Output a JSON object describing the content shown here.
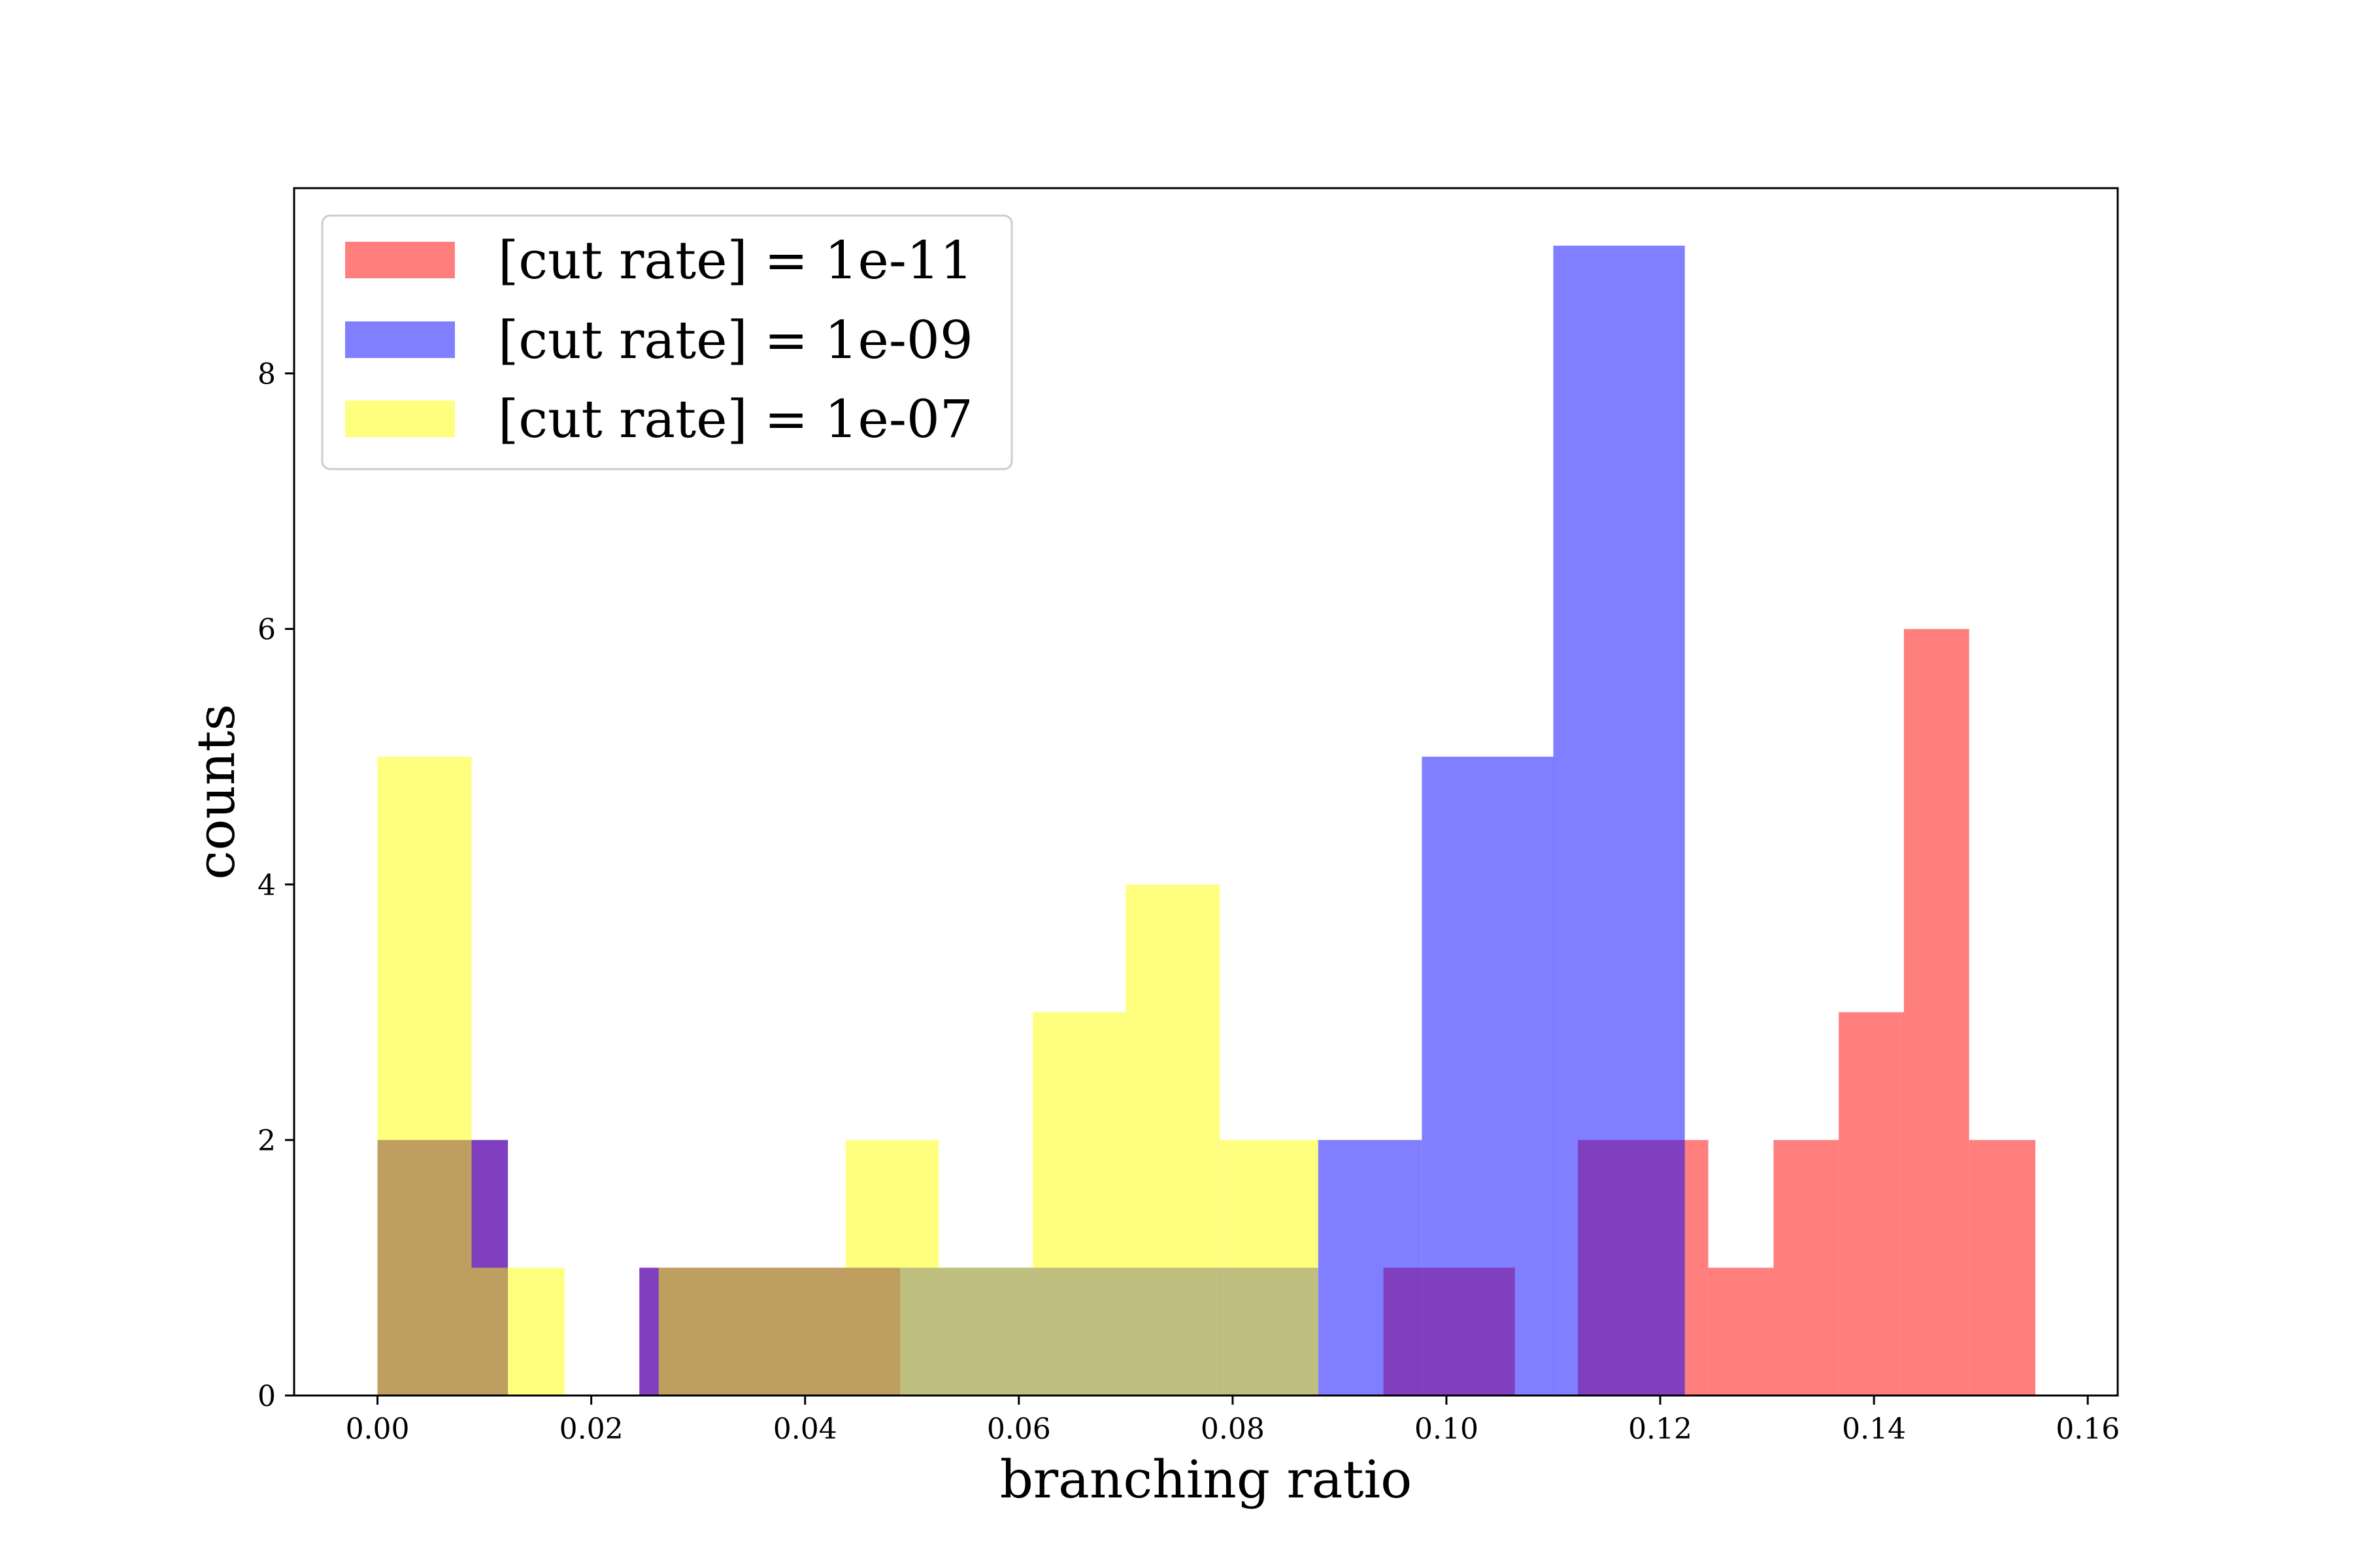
{
  "chart_data": {
    "type": "histogram",
    "xlabel": "branching ratio",
    "ylabel": "counts",
    "xlim": [
      -0.0078,
      0.1628
    ],
    "ylim": [
      0,
      9.45
    ],
    "xticks": [
      0.0,
      0.02,
      0.04,
      0.06,
      0.08,
      0.1,
      0.12,
      0.14,
      0.16
    ],
    "xtick_labels": [
      "0.00",
      "0.02",
      "0.04",
      "0.06",
      "0.08",
      "0.10",
      "0.12",
      "0.14",
      "0.16"
    ],
    "yticks": [
      0,
      2,
      4,
      6,
      8
    ],
    "ytick_labels": [
      "0",
      "2",
      "4",
      "6",
      "8"
    ],
    "legend_position": "upper-left",
    "series": [
      {
        "name": "[cut rate] = 1e-11",
        "color": "#ff0000",
        "opacity": 0.5,
        "bins": [
          {
            "x0": 0.0,
            "x1": 0.0122,
            "count": 2
          },
          {
            "x0": 0.0122,
            "x1": 0.0245,
            "count": 0
          },
          {
            "x0": 0.0245,
            "x1": 0.0367,
            "count": 1
          },
          {
            "x0": 0.0367,
            "x1": 0.0489,
            "count": 1
          },
          {
            "x0": 0.0489,
            "x1": 0.0611,
            "count": 0
          },
          {
            "x0": 0.0611,
            "x1": 0.0734,
            "count": 0
          },
          {
            "x0": 0.0734,
            "x1": 0.0856,
            "count": 0
          },
          {
            "x0": 0.0856,
            "x1": 0.0941,
            "count": 0
          },
          {
            "x0": 0.0941,
            "x1": 0.1064,
            "count": 1
          },
          {
            "x0": 0.1064,
            "x1": 0.1123,
            "count": 0
          },
          {
            "x0": 0.1123,
            "x1": 0.1245,
            "count": 2
          },
          {
            "x0": 0.1245,
            "x1": 0.1306,
            "count": 1
          },
          {
            "x0": 0.1306,
            "x1": 0.1367,
            "count": 2
          },
          {
            "x0": 0.1367,
            "x1": 0.1428,
            "count": 3
          },
          {
            "x0": 0.1428,
            "x1": 0.1489,
            "count": 6
          },
          {
            "x0": 0.1489,
            "x1": 0.1551,
            "count": 2
          }
        ]
      },
      {
        "name": "[cut rate] = 1e-09",
        "color": "#0000ff",
        "opacity": 0.5,
        "bins": [
          {
            "x0": 0.0,
            "x1": 0.0088,
            "count": 2
          },
          {
            "x0": 0.0088,
            "x1": 0.0122,
            "count": 2
          },
          {
            "x0": 0.0122,
            "x1": 0.0245,
            "count": 0
          },
          {
            "x0": 0.0245,
            "x1": 0.088,
            "count": 1
          },
          {
            "x0": 0.088,
            "x1": 0.0977,
            "count": 2
          },
          {
            "x0": 0.0977,
            "x1": 0.11,
            "count": 5
          },
          {
            "x0": 0.11,
            "x1": 0.1223,
            "count": 9
          }
        ]
      },
      {
        "name": "[cut rate] = 1e-07",
        "color": "#ffff00",
        "opacity": 0.5,
        "bins": [
          {
            "x0": 0.0,
            "x1": 0.0088,
            "count": 5
          },
          {
            "x0": 0.0088,
            "x1": 0.0122,
            "count": 1
          },
          {
            "x0": 0.0122,
            "x1": 0.0175,
            "count": 1
          },
          {
            "x0": 0.0175,
            "x1": 0.0263,
            "count": 0
          },
          {
            "x0": 0.0263,
            "x1": 0.0438,
            "count": 1
          },
          {
            "x0": 0.0438,
            "x1": 0.0525,
            "count": 2
          },
          {
            "x0": 0.0525,
            "x1": 0.0613,
            "count": 1
          },
          {
            "x0": 0.0613,
            "x1": 0.07,
            "count": 3
          },
          {
            "x0": 0.07,
            "x1": 0.0788,
            "count": 4
          },
          {
            "x0": 0.0788,
            "x1": 0.088,
            "count": 2
          }
        ]
      }
    ]
  }
}
